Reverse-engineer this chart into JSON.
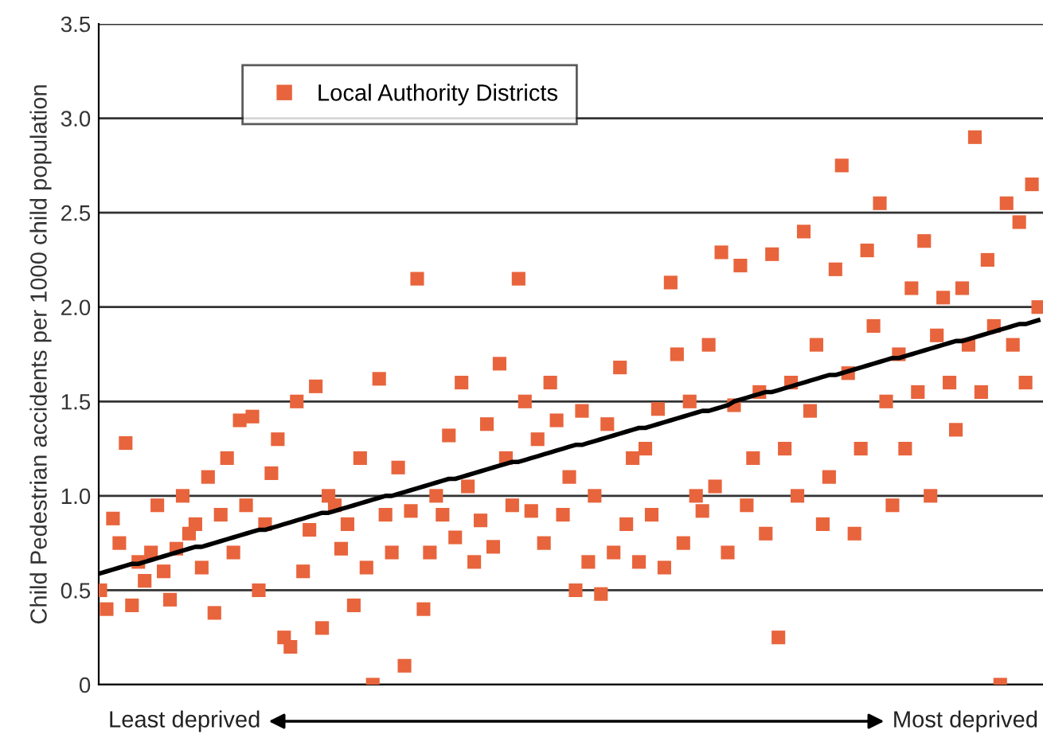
{
  "chart_data": {
    "type": "scatter",
    "ylabel": "Child Pedestrian accidents per 1000 child population",
    "annotations": [
      "Least deprived",
      "Most deprived"
    ],
    "categories": [
      null,
      null,
      null,
      null,
      null,
      null,
      null,
      null,
      null,
      null,
      null,
      null,
      null,
      null,
      null,
      null,
      null,
      null,
      null,
      null,
      null,
      null,
      null,
      null,
      null,
      null,
      null,
      null,
      null,
      null,
      null,
      null,
      null,
      null,
      null,
      null,
      null,
      null,
      null,
      null,
      null,
      null,
      null,
      null,
      null,
      null,
      null,
      null,
      null,
      null,
      null,
      null,
      null,
      null,
      null,
      null,
      null,
      null,
      null,
      null,
      null,
      null,
      null,
      null,
      null,
      null,
      null,
      null,
      null,
      null,
      null,
      null,
      null,
      null,
      null,
      null,
      null,
      null,
      null,
      null,
      null,
      null,
      null,
      null,
      null,
      null,
      null,
      null,
      null,
      null,
      null,
      null,
      null,
      null,
      null,
      null,
      null,
      null,
      null,
      null,
      null,
      null,
      null,
      null,
      null,
      null,
      null,
      null,
      null,
      null,
      null,
      null,
      null,
      null,
      null,
      null,
      null,
      null,
      null,
      null,
      null,
      null,
      null,
      null,
      null,
      null,
      null,
      null,
      null,
      null,
      null,
      null,
      null,
      null,
      null,
      null,
      null,
      null,
      null,
      null,
      null,
      null,
      null,
      null,
      null,
      null,
      null,
      null,
      null
    ],
    "series": [
      {
        "name": "Local Authority Districts",
        "color": "#e8643c",
        "marker": "square",
        "values": [
          0.5,
          0.4,
          0.88,
          0.75,
          1.28,
          0.42,
          0.65,
          0.55,
          0.7,
          0.95,
          0.6,
          0.45,
          0.72,
          1.0,
          0.8,
          0.85,
          0.62,
          1.1,
          0.38,
          0.9,
          1.2,
          0.7,
          1.4,
          0.95,
          1.42,
          0.5,
          0.85,
          1.12,
          1.3,
          0.25,
          0.2,
          1.5,
          0.6,
          0.82,
          1.58,
          0.3,
          1.0,
          0.95,
          0.72,
          0.85,
          0.42,
          1.2,
          0.62,
          0.0,
          1.62,
          0.9,
          0.7,
          1.15,
          0.1,
          0.92,
          2.15,
          0.4,
          0.7,
          1.0,
          0.9,
          1.32,
          0.78,
          1.6,
          1.05,
          0.65,
          0.87,
          1.38,
          0.73,
          1.7,
          1.2,
          0.95,
          2.15,
          1.5,
          0.92,
          1.3,
          0.75,
          1.6,
          1.4,
          0.9,
          1.1,
          0.5,
          1.45,
          0.65,
          1.0,
          0.48,
          1.38,
          0.7,
          1.68,
          0.85,
          1.2,
          0.65,
          1.25,
          0.9,
          1.46,
          0.62,
          2.13,
          1.75,
          0.75,
          1.5,
          1.0,
          0.92,
          1.8,
          1.05,
          2.29,
          0.7,
          1.48,
          2.22,
          0.95,
          1.2,
          1.55,
          0.8,
          2.28,
          0.25,
          1.25,
          1.6,
          1.0,
          2.4,
          1.45,
          1.8,
          0.85,
          1.1,
          2.2,
          2.75,
          1.65,
          0.8,
          1.25,
          2.3,
          1.9,
          2.55,
          1.5,
          0.95,
          1.75,
          1.25,
          2.1,
          1.55,
          2.35,
          1.0,
          1.85,
          2.05,
          1.6,
          1.35,
          2.1,
          1.8,
          2.9,
          1.55,
          2.25,
          1.9,
          0.0,
          2.55,
          1.8,
          2.45,
          1.6,
          2.65,
          2.0
        ]
      },
      {
        "type": "line",
        "color": "#000000",
        "marker": "none",
        "values": [
          0.59,
          0.6,
          0.61,
          0.62,
          0.63,
          0.64,
          0.64,
          0.65,
          0.66,
          0.67,
          0.68,
          0.69,
          0.7,
          0.71,
          0.72,
          0.73,
          0.73,
          0.74,
          0.75,
          0.76,
          0.77,
          0.78,
          0.79,
          0.8,
          0.81,
          0.82,
          0.82,
          0.83,
          0.84,
          0.85,
          0.86,
          0.87,
          0.88,
          0.89,
          0.9,
          0.91,
          0.91,
          0.92,
          0.93,
          0.94,
          0.95,
          0.96,
          0.97,
          0.98,
          0.99,
          1.0,
          1.0,
          1.01,
          1.02,
          1.03,
          1.04,
          1.05,
          1.06,
          1.07,
          1.08,
          1.09,
          1.09,
          1.1,
          1.11,
          1.12,
          1.13,
          1.14,
          1.15,
          1.16,
          1.17,
          1.18,
          1.18,
          1.19,
          1.2,
          1.21,
          1.22,
          1.23,
          1.24,
          1.25,
          1.26,
          1.27,
          1.27,
          1.28,
          1.29,
          1.3,
          1.31,
          1.32,
          1.33,
          1.34,
          1.35,
          1.36,
          1.36,
          1.37,
          1.38,
          1.39,
          1.4,
          1.41,
          1.42,
          1.43,
          1.44,
          1.45,
          1.45,
          1.46,
          1.47,
          1.48,
          1.5,
          1.51,
          1.52,
          1.53,
          1.54,
          1.55,
          1.55,
          1.56,
          1.57,
          1.58,
          1.59,
          1.6,
          1.61,
          1.62,
          1.63,
          1.64,
          1.64,
          1.65,
          1.66,
          1.67,
          1.68,
          1.69,
          1.7,
          1.71,
          1.72,
          1.73,
          1.73,
          1.74,
          1.75,
          1.76,
          1.77,
          1.78,
          1.79,
          1.8,
          1.81,
          1.82,
          1.82,
          1.83,
          1.84,
          1.85,
          1.86,
          1.87,
          1.88,
          1.89,
          1.9,
          1.91,
          1.91,
          1.92,
          1.93
        ]
      }
    ],
    "ylim": [
      0,
      3.5
    ],
    "yticks": [
      0,
      0.5,
      {
        "value": 1,
        "label": "1.0"
      },
      1.5,
      {
        "value": 2,
        "label": "2.0"
      },
      2.5,
      {
        "value": 3,
        "label": "3.0"
      },
      3.5
    ],
    "grid": "y",
    "legend": "top left",
    "line_style": "solid"
  }
}
